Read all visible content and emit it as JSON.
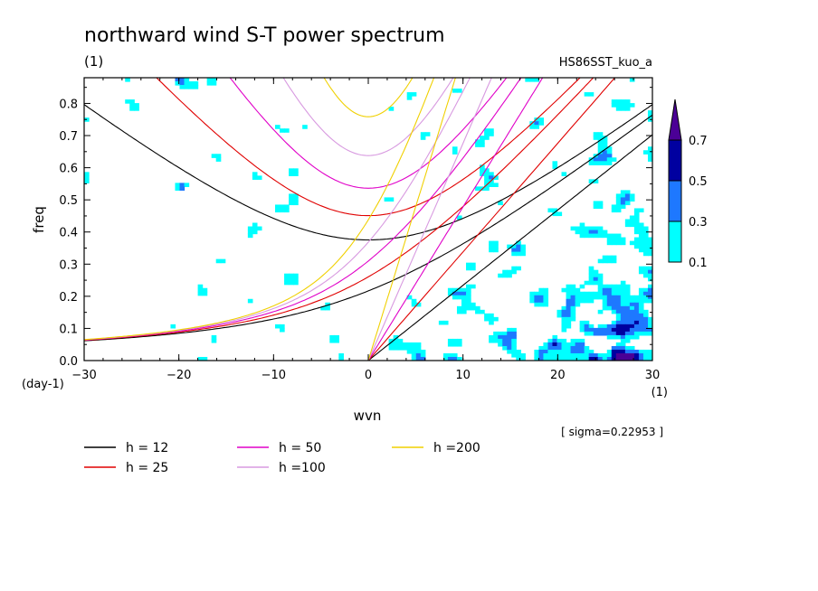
{
  "chart_data": {
    "type": "heatmap",
    "title": "northward wind S-T power spectrum",
    "subtitle_left": "(1)",
    "subtitle_right": "HS86SST_kuo_a",
    "xlabel": "wvn",
    "ylabel": "freq",
    "x_unit": "(1)",
    "y_unit": "(day-1)",
    "xlim": [
      -30,
      30
    ],
    "ylim": [
      0,
      0.88
    ],
    "x_ticks": [
      "−30",
      "−20",
      "−10",
      "0",
      "10",
      "20",
      "30"
    ],
    "x_tick_values": [
      -30,
      -20,
      -10,
      0,
      10,
      20,
      30
    ],
    "y_ticks": [
      "0.0",
      "0.1",
      "0.2",
      "0.3",
      "0.4",
      "0.5",
      "0.6",
      "0.7",
      "0.8"
    ],
    "y_tick_values": [
      0,
      0.1,
      0.2,
      0.3,
      0.4,
      0.5,
      0.6,
      0.7,
      0.8
    ],
    "sigma_note": "[ sigma=0.22953 ]",
    "colorbar": {
      "levels": [
        "0.1",
        "0.3",
        "0.5",
        "0.7"
      ],
      "level_values": [
        0.1,
        0.3,
        0.5,
        0.7
      ],
      "colors": [
        "#ffffff",
        "#00ffff",
        "#1e78ff",
        "#0000a0",
        "#4b0096"
      ]
    },
    "equivalent_depths": [
      {
        "label": "h = 12",
        "h": 12,
        "color": "#000000"
      },
      {
        "label": "h = 25",
        "h": 25,
        "color": "#e00000"
      },
      {
        "label": "h = 50",
        "h": 50,
        "color": "#e000c8"
      },
      {
        "label": "h =100",
        "h": 100,
        "color": "#d89ae0"
      },
      {
        "label": "h =200",
        "h": 200,
        "color": "#f0d000"
      }
    ],
    "grid": false,
    "legend_position": "bottom-left"
  }
}
